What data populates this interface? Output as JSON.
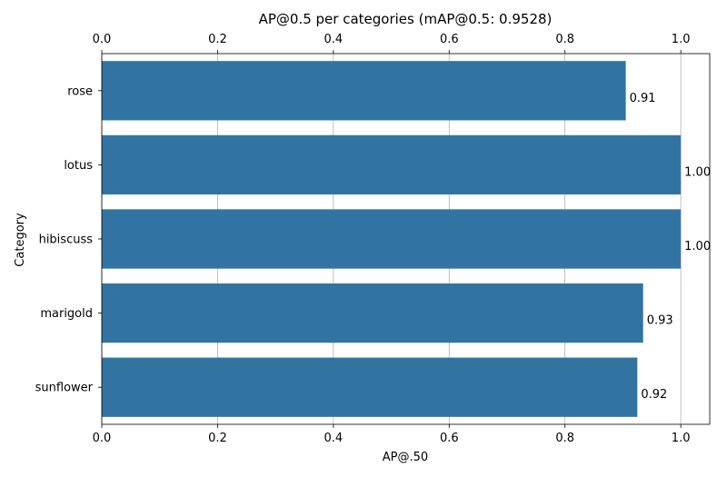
{
  "chart_data": {
    "type": "bar",
    "orientation": "horizontal",
    "title": "AP@0.5 per categories (mAP@0.5: 0.9528)",
    "xlabel": "AP@.50",
    "ylabel": "Category",
    "categories": [
      "rose",
      "lotus",
      "hibiscuss",
      "marigold",
      "sunflower"
    ],
    "values": [
      0.905,
      1.0,
      1.0,
      0.935,
      0.925
    ],
    "data_labels": [
      "0.91",
      "1.00",
      "1.00",
      "0.93",
      "0.92"
    ],
    "xlim": [
      0,
      1.05
    ],
    "xticks": [
      0.0,
      0.2,
      0.4,
      0.6,
      0.8,
      1.0
    ],
    "xtick_labels": [
      "0.0",
      "0.2",
      "0.4",
      "0.6",
      "0.8",
      "1.0"
    ],
    "x_axis_position": "top and bottom",
    "grid": "vertical only",
    "bar_color": "#3274a1",
    "grid_color": "#b0b0b0"
  }
}
